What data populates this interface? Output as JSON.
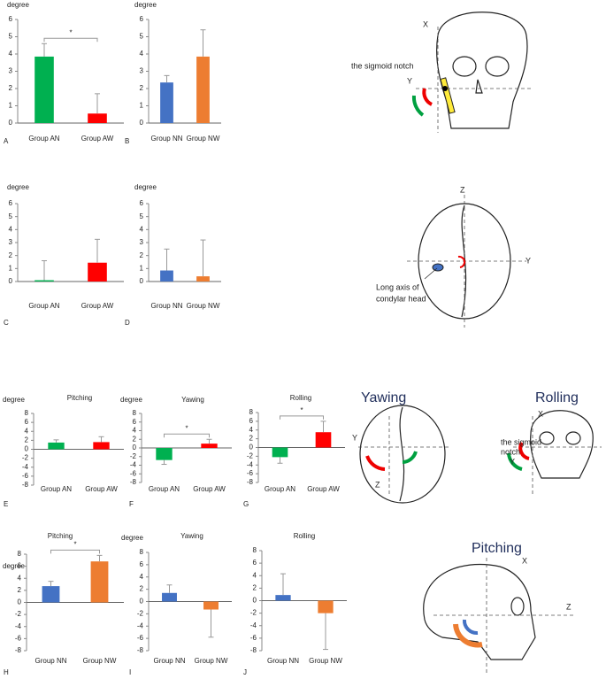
{
  "chart_data": [
    {
      "type": "bar",
      "panel": "A",
      "ylabel": "degree",
      "categories": [
        "Group AN",
        "Group AW"
      ],
      "values": [
        3.85,
        0.55
      ],
      "errors": [
        0.75,
        1.15
      ],
      "colors": [
        "#00b050",
        "#ff0000"
      ],
      "significance": "*",
      "ylim": [
        0,
        6
      ],
      "yticks": [
        0,
        1,
        2,
        3,
        4,
        5,
        6
      ]
    },
    {
      "type": "bar",
      "panel": "B",
      "ylabel": "degree",
      "categories": [
        "Group NN",
        "Group NW"
      ],
      "values": [
        2.35,
        3.85
      ],
      "errors": [
        0.4,
        1.55
      ],
      "colors": [
        "#4472c4",
        "#ed7d31"
      ],
      "ylim": [
        0,
        6
      ],
      "yticks": [
        0,
        1,
        2,
        3,
        4,
        5,
        6
      ]
    },
    {
      "type": "bar",
      "panel": "C",
      "ylabel": "degree",
      "categories": [
        "Group AN",
        "Group AW"
      ],
      "values": [
        0.1,
        1.45
      ],
      "errors": [
        1.5,
        1.8
      ],
      "colors": [
        "#00b050",
        "#ff0000"
      ],
      "ylim": [
        0,
        6
      ],
      "yticks": [
        0,
        1,
        2,
        3,
        4,
        5,
        6
      ]
    },
    {
      "type": "bar",
      "panel": "D",
      "ylabel": "degree",
      "categories": [
        "Group NN",
        "Group NW"
      ],
      "values": [
        0.85,
        0.4
      ],
      "errors": [
        1.65,
        2.8
      ],
      "colors": [
        "#4472c4",
        "#ed7d31"
      ],
      "ylim": [
        0,
        6
      ],
      "yticks": [
        0,
        1,
        2,
        3,
        4,
        5,
        6
      ]
    },
    {
      "type": "bar",
      "panel": "E",
      "ylabel": "degree",
      "title": "Pitching",
      "categories": [
        "Group AN",
        "Group AW"
      ],
      "values": [
        1.5,
        1.6
      ],
      "errors": [
        0.6,
        1.2
      ],
      "colors": [
        "#00b050",
        "#ff0000"
      ],
      "ylim": [
        -8,
        8
      ],
      "yticks": [
        -8,
        -6,
        -4,
        -2,
        0,
        2,
        4,
        6,
        8
      ]
    },
    {
      "type": "bar",
      "panel": "F",
      "ylabel": "degree",
      "title": "Yawing",
      "categories": [
        "Group AN",
        "Group AW"
      ],
      "values": [
        -2.8,
        1.0
      ],
      "errors": [
        1.0,
        1.0
      ],
      "colors": [
        "#00b050",
        "#ff0000"
      ],
      "significance": "*",
      "ylim": [
        -8,
        8
      ],
      "yticks": [
        -8,
        -6,
        -4,
        -2,
        0,
        2,
        4,
        6,
        8
      ]
    },
    {
      "type": "bar",
      "panel": "G",
      "title": "Rolling",
      "categories": [
        "Group AN",
        "Group AW"
      ],
      "values": [
        -2.2,
        3.5
      ],
      "errors": [
        1.4,
        2.5
      ],
      "colors": [
        "#00b050",
        "#ff0000"
      ],
      "significance": "*",
      "ylim": [
        -8,
        8
      ],
      "yticks": [
        -8,
        -6,
        -4,
        -2,
        0,
        2,
        4,
        6,
        8
      ]
    },
    {
      "type": "bar",
      "panel": "H",
      "ylabel": "degree",
      "title": "Pitching",
      "categories": [
        "Group NN",
        "Group NW"
      ],
      "values": [
        2.7,
        6.8
      ],
      "errors": [
        0.8,
        1.0
      ],
      "colors": [
        "#4472c4",
        "#ed7d31"
      ],
      "significance": "*",
      "ylim": [
        -8,
        8
      ],
      "yticks": [
        -8,
        -6,
        -4,
        -2,
        0,
        2,
        4,
        6,
        8
      ]
    },
    {
      "type": "bar",
      "panel": "I",
      "ylabel": "degree",
      "title": "Yawing",
      "categories": [
        "Group NN",
        "Group NW"
      ],
      "values": [
        1.4,
        -1.3
      ],
      "errors": [
        1.3,
        4.5
      ],
      "colors": [
        "#4472c4",
        "#ed7d31"
      ],
      "ylim": [
        -8,
        8
      ],
      "yticks": [
        -8,
        -6,
        -4,
        -2,
        0,
        2,
        4,
        6,
        8
      ]
    },
    {
      "type": "bar",
      "panel": "J",
      "title": "Rolling",
      "categories": [
        "Group NN",
        "Group NW"
      ],
      "values": [
        0.9,
        -2.0
      ],
      "errors": [
        3.4,
        5.8
      ],
      "colors": [
        "#4472c4",
        "#ed7d31"
      ],
      "ylim": [
        -8,
        8
      ],
      "yticks": [
        -8,
        -6,
        -4,
        -2,
        0,
        2,
        4,
        6,
        8
      ]
    }
  ],
  "diagrams": [
    {
      "labels": [
        "X",
        "the sigmoid notch",
        "Y"
      ]
    },
    {
      "labels": [
        "Z",
        "Y",
        "Long axis of",
        "condylar head"
      ]
    },
    {
      "labels": [
        "Yawing",
        "Y",
        "Z",
        "Rolling",
        "X",
        "the sigmoid",
        "notch",
        "Y"
      ]
    },
    {
      "labels": [
        "Pitching",
        "X",
        "Z"
      ]
    }
  ]
}
